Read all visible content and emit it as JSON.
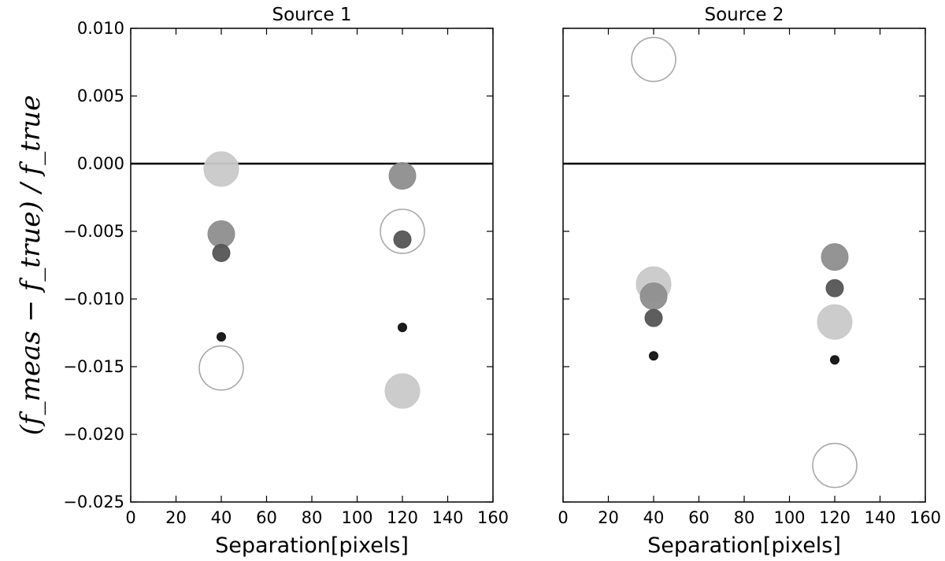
{
  "chart_data": {
    "type": "scatter",
    "ylabel": "(f_meas − f_true) / f_true",
    "ylim": [
      -0.025,
      0.01
    ],
    "yticks": [
      "0.010",
      "0.005",
      "0.000",
      "−0.005",
      "−0.010",
      "−0.015",
      "−0.020",
      "−0.025"
    ],
    "panels": [
      {
        "title": "Source 1",
        "xlabel": "Separation[pixels]",
        "xlim": [
          0,
          160
        ],
        "xticks": [
          "0",
          "20",
          "40",
          "60",
          "80",
          "100",
          "120",
          "140",
          "160"
        ],
        "reference_line_y": 0,
        "points": [
          {
            "x": 40,
            "y": -0.0004,
            "shade": "light",
            "size": "large"
          },
          {
            "x": 40,
            "y": -0.0052,
            "shade": "medium",
            "size": "medium"
          },
          {
            "x": 40,
            "y": -0.0066,
            "shade": "dark",
            "size": "small"
          },
          {
            "x": 40,
            "y": -0.0128,
            "shade": "black",
            "size": "tiny"
          },
          {
            "x": 40,
            "y": -0.0151,
            "shade": "white",
            "size": "xlarge"
          },
          {
            "x": 120,
            "y": -0.0009,
            "shade": "medium",
            "size": "medium"
          },
          {
            "x": 120,
            "y": -0.005,
            "shade": "white",
            "size": "xlarge"
          },
          {
            "x": 120,
            "y": -0.0056,
            "shade": "dark",
            "size": "small"
          },
          {
            "x": 120,
            "y": -0.0121,
            "shade": "black",
            "size": "tiny"
          },
          {
            "x": 120,
            "y": -0.0168,
            "shade": "light",
            "size": "large"
          }
        ]
      },
      {
        "title": "Source 2",
        "xlabel": "Separation[pixels]",
        "xlim": [
          0,
          160
        ],
        "xticks": [
          "0",
          "20",
          "40",
          "60",
          "80",
          "100",
          "120",
          "140",
          "160"
        ],
        "reference_line_y": 0,
        "points": [
          {
            "x": 40,
            "y": 0.0077,
            "shade": "white",
            "size": "xlarge"
          },
          {
            "x": 40,
            "y": -0.0089,
            "shade": "light",
            "size": "large"
          },
          {
            "x": 40,
            "y": -0.0098,
            "shade": "medium",
            "size": "medium"
          },
          {
            "x": 40,
            "y": -0.0114,
            "shade": "dark",
            "size": "small"
          },
          {
            "x": 40,
            "y": -0.0142,
            "shade": "black",
            "size": "tiny"
          },
          {
            "x": 120,
            "y": -0.0069,
            "shade": "medium",
            "size": "medium"
          },
          {
            "x": 120,
            "y": -0.0092,
            "shade": "dark",
            "size": "small"
          },
          {
            "x": 120,
            "y": -0.0117,
            "shade": "light",
            "size": "large"
          },
          {
            "x": 120,
            "y": -0.0145,
            "shade": "black",
            "size": "tiny"
          },
          {
            "x": 120,
            "y": -0.0223,
            "shade": "white",
            "size": "xlarge"
          }
        ]
      }
    ],
    "colors": {
      "white": "#ffffff",
      "light": "#c9c9c9",
      "medium": "#8e8e8e",
      "dark": "#555555",
      "black": "#111111"
    }
  }
}
